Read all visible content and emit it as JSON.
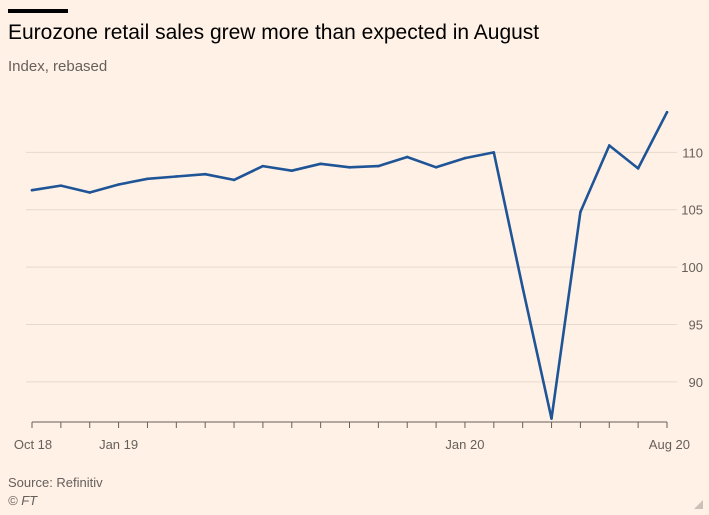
{
  "header": {
    "title": "Eurozone retail sales grew more than expected in August",
    "subtitle": "Index, rebased"
  },
  "footer": {
    "source": "Source: Refinitiv",
    "credit": "© FT"
  },
  "colors": {
    "background": "#fff1e5",
    "line": "#1f5597",
    "grid": "#e6d9ce",
    "axis": "#66605c"
  },
  "chart_data": {
    "type": "line",
    "title": "Eurozone retail sales grew more than expected in August",
    "subtitle": "Index, rebased",
    "x": [
      "2018-10",
      "2018-11",
      "2018-12",
      "2019-01",
      "2019-02",
      "2019-03",
      "2019-04",
      "2019-05",
      "2019-06",
      "2019-07",
      "2019-08",
      "2019-09",
      "2019-10",
      "2019-11",
      "2019-12",
      "2020-01",
      "2020-02",
      "2020-03",
      "2020-04",
      "2020-05",
      "2020-06",
      "2020-07",
      "2020-08"
    ],
    "series": [
      {
        "values": [
          106.7,
          107.1,
          106.5,
          107.2,
          107.7,
          107.9,
          108.1,
          107.6,
          108.8,
          108.4,
          109.0,
          108.7,
          108.8,
          109.6,
          108.7,
          109.5,
          110.0,
          98.2,
          86.8,
          104.8,
          110.6,
          108.6,
          113.5
        ]
      }
    ],
    "x_tick_labels": [
      "Oct 18",
      "Jan 19",
      "Jan 20",
      "Aug 20"
    ],
    "y_ticks": [
      90,
      95,
      100,
      105,
      110
    ],
    "ylim": [
      86.5,
      115
    ],
    "y_axis_position": "right",
    "grid": true
  }
}
